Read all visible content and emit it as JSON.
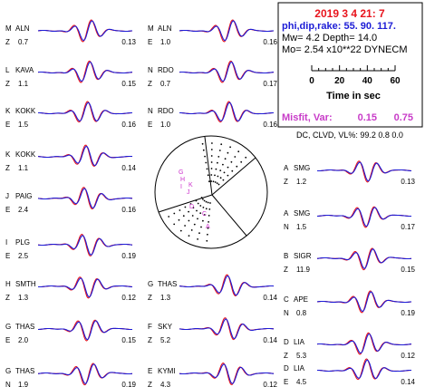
{
  "header": {
    "datetime": "2019  3  4  21: 7",
    "param_line": "phi,dip,rake:  55. 90.  117.",
    "mw_line": "Mw=  4.2    Depth=   14.0",
    "mo_line": "Mo=  2.54 x10**22 DYNECM",
    "time_axis_ticks": [
      "0",
      "20",
      "40",
      "60"
    ],
    "time_axis_label": "Time  in sec",
    "misfit_label": "Misfit, Var:",
    "misfit_value": "0.15",
    "var_value": "0.75",
    "dc_line": "DC, CLVD, VL%:  99.2   0.8   0.0"
  },
  "colors": {
    "observed": "#e8141d",
    "synthetic": "#1c1cd6",
    "title": "#e8141d",
    "params": "#1c1cd6",
    "misfit": "#c83cc8",
    "axis": "#000000",
    "mechanism_marks": "#cc33cc"
  },
  "chart_data": {
    "type": "line",
    "description_series": [
      "observed",
      "synthetic"
    ],
    "traces": [
      {
        "comp": "M",
        "station": "ALN",
        "chan": "Z",
        "amp": "0.7",
        "scale": "0.13"
      },
      {
        "comp": "L",
        "station": "KAVA",
        "chan": "Z",
        "amp": "1.1",
        "scale": "0.15"
      },
      {
        "comp": "K",
        "station": "KOKK",
        "chan": "E",
        "amp": "1.5",
        "scale": "0.16"
      },
      {
        "comp": "K",
        "station": "KOKK",
        "chan": "Z",
        "amp": "1.1",
        "scale": "0.14"
      },
      {
        "comp": "J",
        "station": "PAIG",
        "chan": "E",
        "amp": "2.4",
        "scale": "0.16"
      },
      {
        "comp": "I",
        "station": "PLG",
        "chan": "E",
        "amp": "2.5",
        "scale": "0.19"
      },
      {
        "comp": "H",
        "station": "SMTH",
        "chan": "Z",
        "amp": "1.3",
        "scale": "0.12"
      },
      {
        "comp": "G",
        "station": "THAS",
        "chan": "E",
        "amp": "2.0",
        "scale": "0.15"
      },
      {
        "comp": "G",
        "station": "THAS",
        "chan": "N",
        "amp": "1.9",
        "scale": "0.19"
      },
      {
        "comp": "M",
        "station": "ALN",
        "chan": "E",
        "amp": "1.0",
        "scale": "0.16"
      },
      {
        "comp": "N",
        "station": "RDO",
        "chan": "Z",
        "amp": "0.7",
        "scale": "0.17"
      },
      {
        "comp": "N",
        "station": "RDO",
        "chan": "E",
        "amp": "1.0",
        "scale": "0.16"
      },
      {
        "comp": "G",
        "station": "THAS",
        "chan": "Z",
        "amp": "1.3",
        "scale": "0.14"
      },
      {
        "comp": "F",
        "station": "SKY",
        "chan": "Z",
        "amp": "5.2",
        "scale": "0.14"
      },
      {
        "comp": "E",
        "station": "KYMI",
        "chan": "Z",
        "amp": "4.3",
        "scale": "0.12"
      },
      {
        "comp": "A",
        "station": "SMG",
        "chan": "Z",
        "amp": "1.2",
        "scale": "0.13"
      },
      {
        "comp": "A",
        "station": "SMG",
        "chan": "N",
        "amp": "1.5",
        "scale": "0.17"
      },
      {
        "comp": "B",
        "station": "SIGR",
        "chan": "Z",
        "amp": "11.9",
        "scale": "0.15"
      },
      {
        "comp": "C",
        "station": "APE",
        "chan": "N",
        "amp": "0.8",
        "scale": "0.19"
      },
      {
        "comp": "D",
        "station": "LIA",
        "chan": "Z",
        "amp": "5.3",
        "scale": "0.12"
      },
      {
        "comp": "D",
        "station": "LIA",
        "chan": "E",
        "amp": "4.5",
        "scale": "0.14"
      }
    ],
    "time_axis": {
      "ticks": [
        0,
        20,
        40,
        60
      ],
      "label": "Time  in sec"
    },
    "mechanism": {
      "strike": 55,
      "dip": 90,
      "rake": 117,
      "station_labels": [
        "G",
        "H",
        "I",
        "J",
        "K",
        "D",
        "C",
        "A"
      ]
    }
  }
}
